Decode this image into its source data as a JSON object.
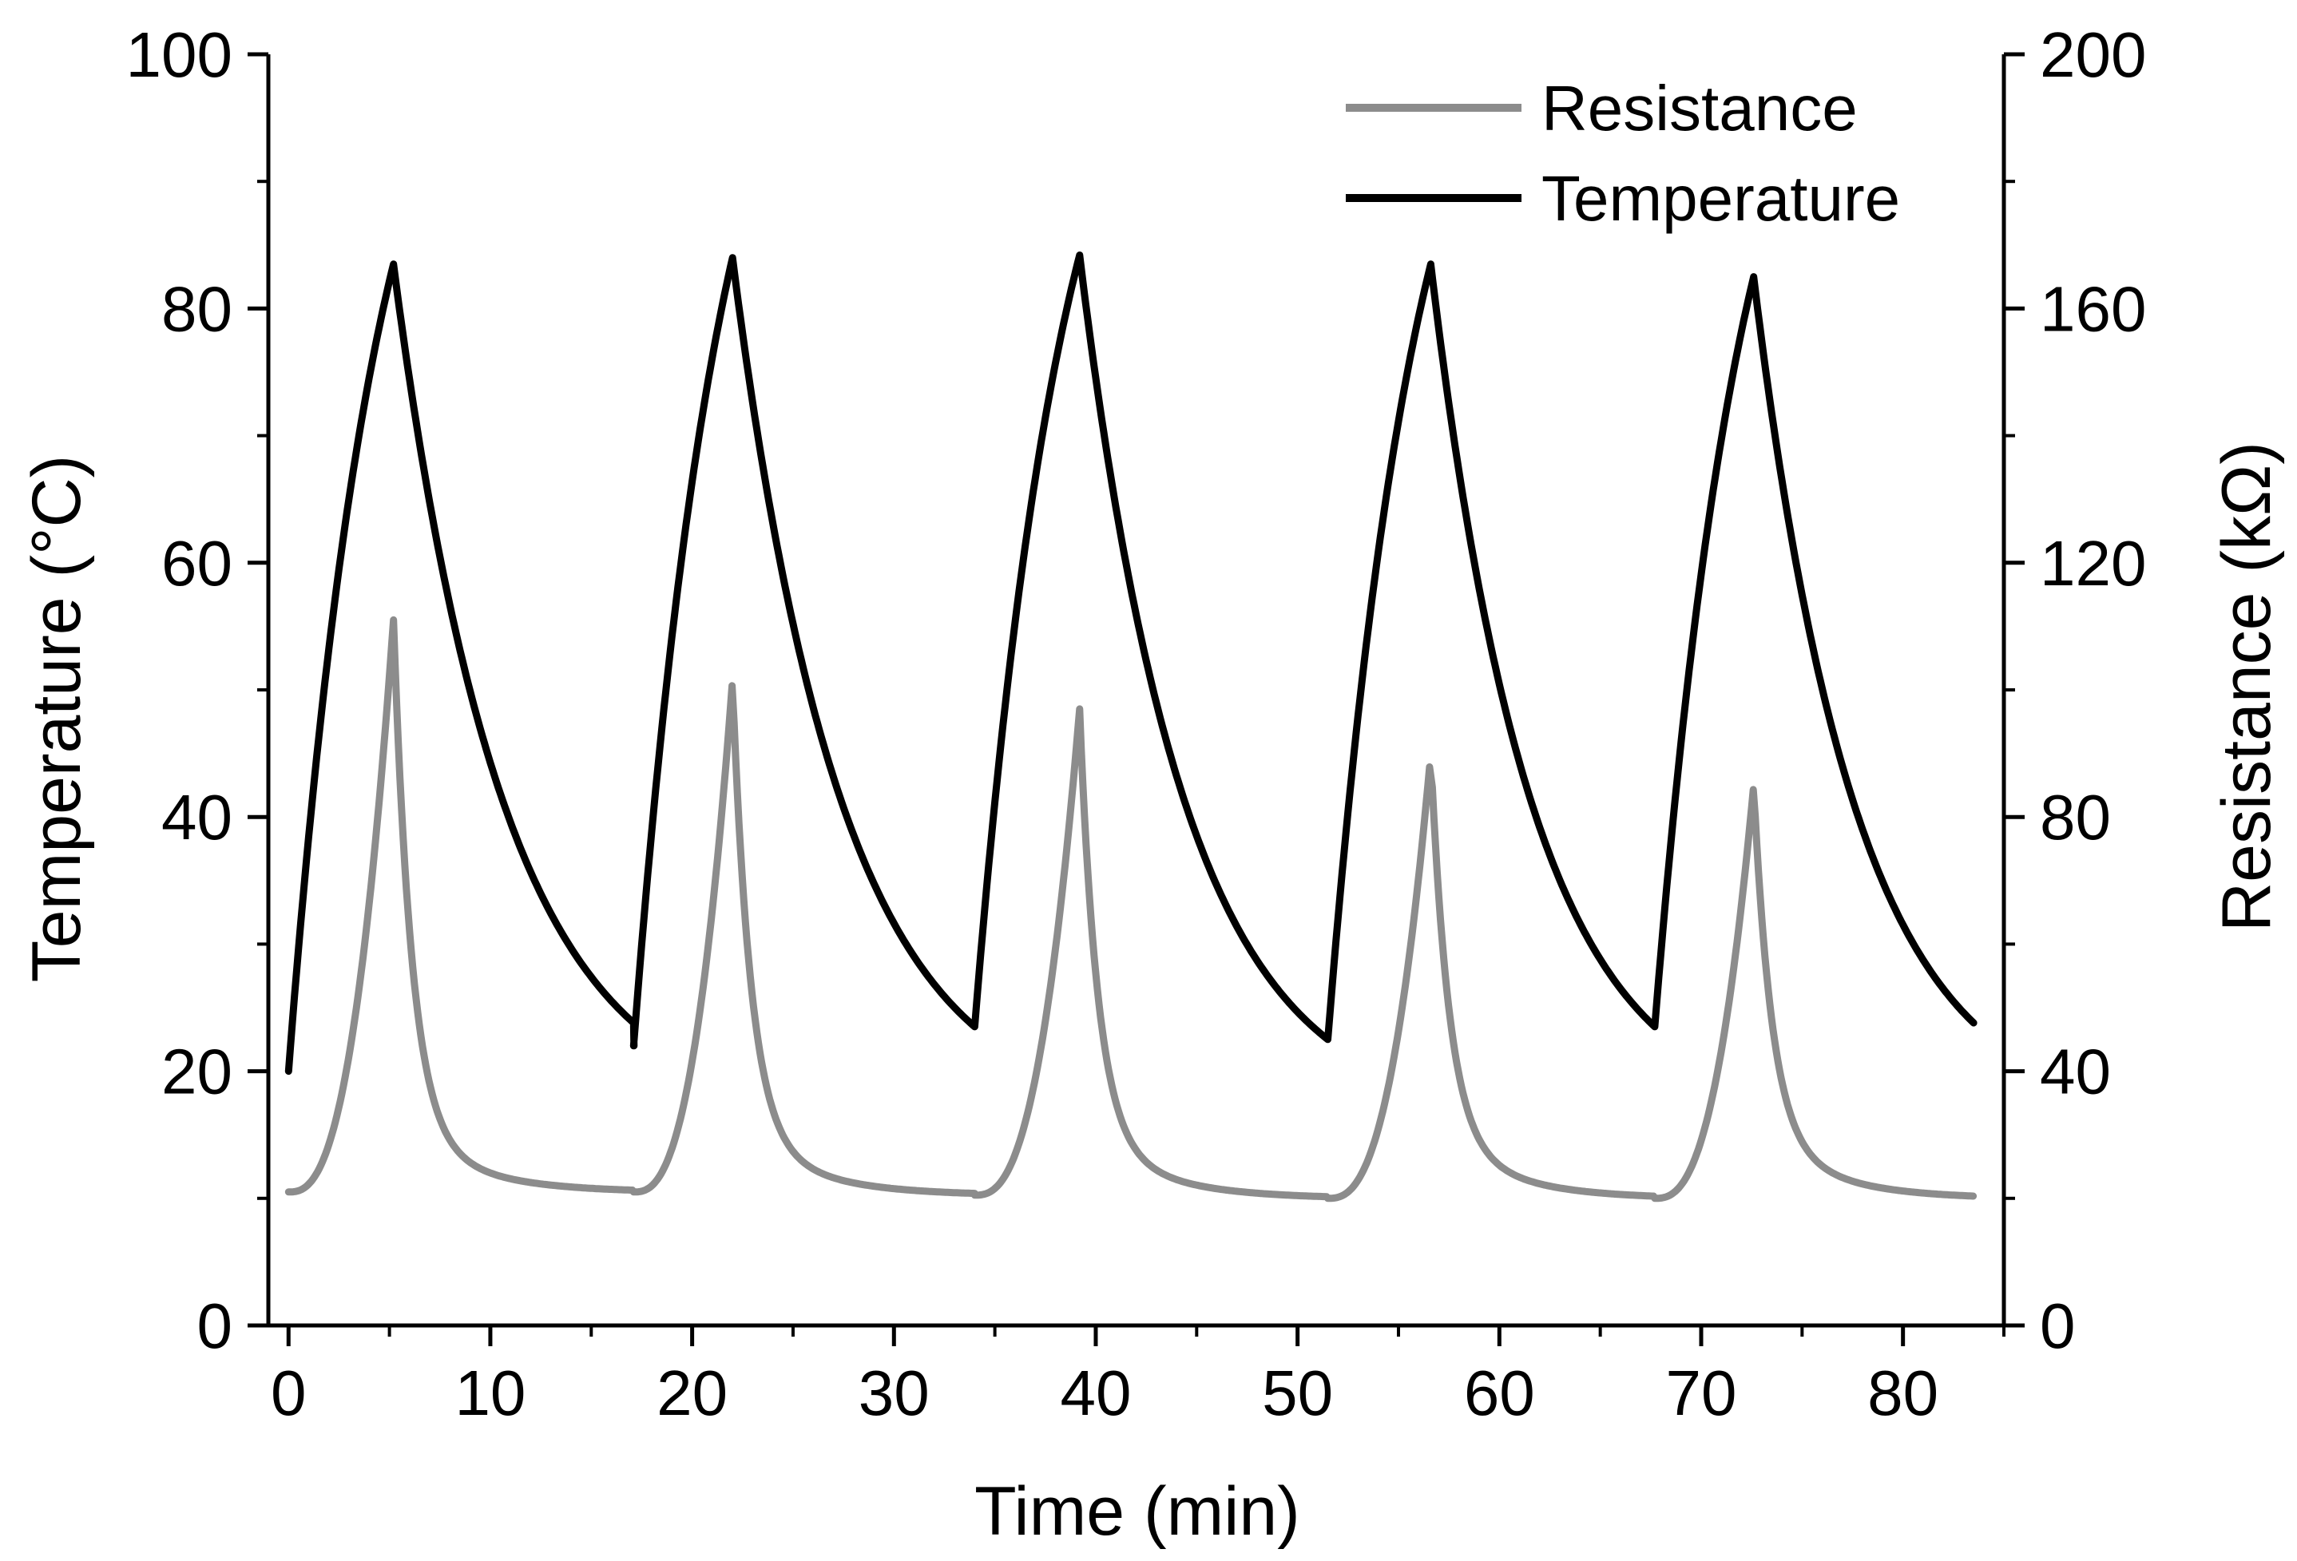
{
  "chart_data": {
    "type": "line",
    "title": "",
    "xlabel": "Time (min)",
    "ylabel_left": "Temperature (°C)",
    "ylabel_right": "Resistance (kΩ)",
    "xlim": [
      -1,
      85
    ],
    "ylim_left": [
      0,
      100
    ],
    "ylim_right": [
      0,
      200
    ],
    "xticks": [
      "0",
      "10",
      "20",
      "30",
      "40",
      "50",
      "60",
      "70",
      "80"
    ],
    "yticks_left": [
      "0",
      "20",
      "40",
      "60",
      "80",
      "100"
    ],
    "yticks_right": [
      "0",
      "40",
      "80",
      "120",
      "160",
      "200"
    ],
    "grid": false,
    "legend_position": "top-right",
    "colors": {
      "resistance": "#8c8c8c",
      "temperature": "#000000",
      "axis": "#000000"
    },
    "cycles": {
      "temperature": [
        {
          "start": 0,
          "peak": 5.2,
          "end": 17.1,
          "t_start": 20.0,
          "t_peak": 83.5,
          "t_end": 23.8,
          "t_drop": 22.0
        },
        {
          "start": 17.1,
          "peak": 22.0,
          "end": 34.0,
          "t_start": 22.0,
          "t_peak": 84.0,
          "t_end": 23.5
        },
        {
          "start": 34.0,
          "peak": 39.2,
          "end": 51.5,
          "t_start": 23.5,
          "t_peak": 84.2,
          "t_end": 22.5
        },
        {
          "start": 51.5,
          "peak": 56.6,
          "end": 67.7,
          "t_start": 22.5,
          "t_peak": 83.5,
          "t_end": 23.5
        },
        {
          "start": 67.7,
          "peak": 72.6,
          "end": 83.5,
          "t_start": 23.5,
          "t_peak": 82.5,
          "t_end": 23.8
        }
      ],
      "resistance": [
        {
          "start": 0,
          "peak": 5.2,
          "end": 17.1,
          "r_start": 21.0,
          "r_peak": 111.0,
          "r_end": 21.0
        },
        {
          "start": 17.1,
          "peak": 22.0,
          "end": 34.0,
          "r_start": 21.0,
          "r_peak": 101.5,
          "r_end": 20.5
        },
        {
          "start": 34.0,
          "peak": 39.2,
          "end": 51.5,
          "r_start": 20.5,
          "r_peak": 97.0,
          "r_end": 20.0
        },
        {
          "start": 51.5,
          "peak": 56.6,
          "end": 67.7,
          "r_start": 20.0,
          "r_peak": 90.0,
          "r_end": 20.0
        },
        {
          "start": 67.7,
          "peak": 72.6,
          "end": 83.5,
          "r_start": 20.0,
          "r_peak": 85.0,
          "r_end": 20.0
        }
      ]
    },
    "series": [
      {
        "name": "Resistance",
        "axis": "right",
        "color": "#8c8c8c"
      },
      {
        "name": "Temperature",
        "axis": "left",
        "color": "#000000"
      }
    ]
  }
}
